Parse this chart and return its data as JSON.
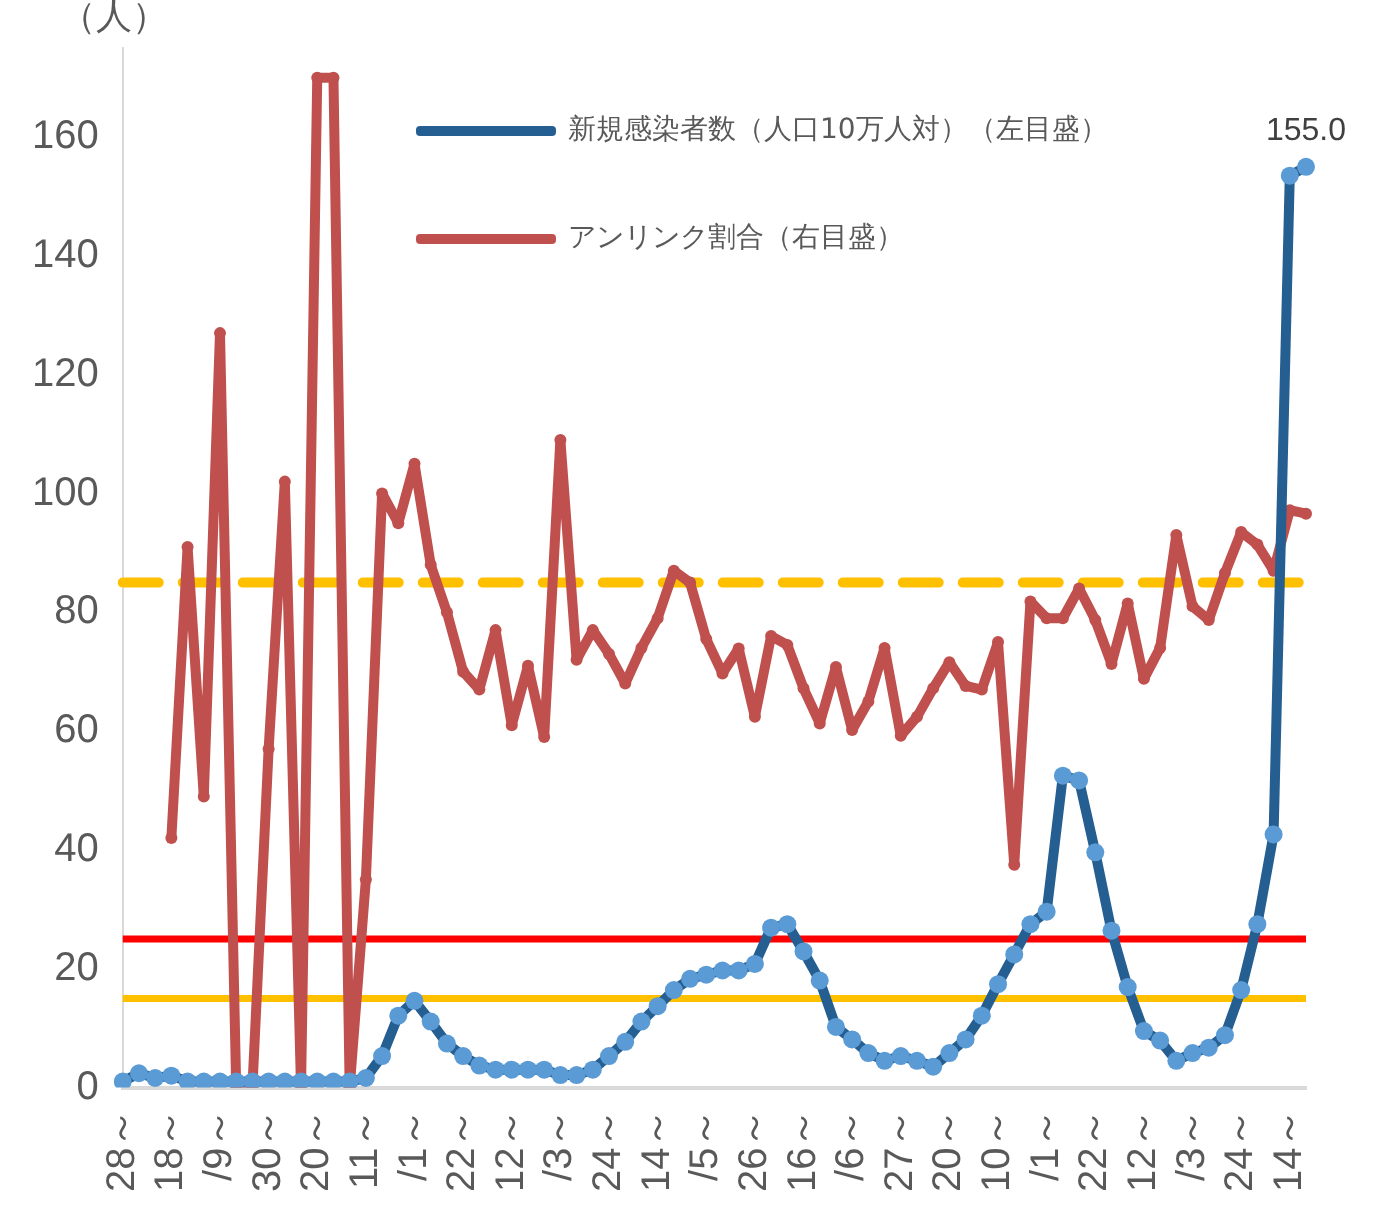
{
  "chart_data": {
    "type": "line",
    "ylabel": "（人）",
    "categories": [
      "28～",
      null,
      null,
      "18～",
      null,
      null,
      "/9～",
      null,
      null,
      "30～",
      null,
      null,
      "20～",
      null,
      null,
      "11～",
      null,
      null,
      "/1～",
      null,
      null,
      "22～",
      null,
      null,
      "12～",
      null,
      null,
      "/3～",
      null,
      null,
      "24～",
      null,
      null,
      "14～",
      null,
      null,
      "/5～",
      null,
      null,
      "26～",
      null,
      null,
      "16～",
      null,
      null,
      "/6～",
      null,
      null,
      "27～",
      null,
      null,
      "20～",
      null,
      null,
      "10～",
      null,
      null,
      "/1～",
      null,
      null,
      "22～",
      null,
      null,
      "12～",
      null,
      null,
      "/3～",
      null,
      null,
      "24～",
      null,
      null,
      "14～",
      null
    ],
    "series": [
      {
        "name": "新規感染者数（人口10万人対）（左目盛）",
        "color": "#255e91",
        "values": [
          1,
          2.4,
          1.6,
          2,
          1,
          1,
          1,
          1,
          1,
          1,
          1,
          1,
          1,
          1,
          1,
          1.6,
          5.3,
          12.1,
          14.6,
          11.1,
          7.4,
          5.3,
          3.7,
          3,
          3,
          3,
          3,
          2.1,
          2.1,
          3,
          5.3,
          7.7,
          11.1,
          13.7,
          16.4,
          18.3,
          19,
          19.7,
          19.7,
          20.8,
          26.9,
          27.5,
          22.9,
          18,
          10.2,
          8.1,
          5.8,
          4.5,
          5.3,
          4.5,
          3.5,
          5.8,
          8.1,
          12.1,
          17.4,
          22.4,
          27.5,
          29.6,
          52.5,
          51.7,
          39.6,
          26.4,
          16.9,
          9.5,
          7.9,
          4.5,
          5.8,
          6.7,
          8.8,
          16.4,
          27.5,
          42.6,
          153.5,
          155
        ],
        "value_labels": [
          null,
          null,
          null,
          null,
          null,
          null,
          null,
          null,
          null,
          null,
          null,
          null,
          null,
          null,
          null,
          null,
          null,
          null,
          null,
          null,
          null,
          null,
          null,
          null,
          null,
          null,
          null,
          null,
          null,
          null,
          null,
          null,
          null,
          null,
          null,
          null,
          null,
          null,
          null,
          null,
          null,
          null,
          null,
          null,
          null,
          null,
          null,
          null,
          null,
          null,
          null,
          null,
          null,
          null,
          null,
          null,
          null,
          null,
          null,
          null,
          null,
          null,
          null,
          null,
          null,
          null,
          null,
          null,
          null,
          null,
          null,
          null,
          null,
          "155.0"
        ]
      },
      {
        "name": "アンリンク割合（右目盛）",
        "color": "#c0504d",
        "values": [
          null,
          null,
          null,
          42,
          91,
          49,
          127,
          0,
          0,
          57,
          102,
          0,
          170,
          170,
          0,
          35,
          100,
          95,
          105,
          88,
          80,
          70,
          67,
          77,
          61,
          71,
          59,
          109,
          72,
          77,
          73,
          68,
          74,
          79,
          87,
          85,
          75.5,
          69.7,
          73.9,
          62.4,
          76,
          74.5,
          67.2,
          61.3,
          70.8,
          60.2,
          65,
          74,
          59.2,
          62.4,
          67.2,
          71.6,
          67.6,
          67,
          75,
          37.5,
          81.8,
          79,
          79,
          84,
          78.7,
          71.3,
          81.5,
          68.8,
          74,
          93,
          81,
          78.7,
          86.6,
          93.5,
          91.4,
          87,
          97.2,
          96.6
        ]
      }
    ],
    "ylim": [
      0,
      175
    ],
    "yticks": [
      0,
      20,
      40,
      60,
      80,
      100,
      120,
      140,
      160
    ],
    "ref_lines": [
      {
        "axis": "y",
        "value": 25,
        "color": "#ff0000",
        "line_style": "solid"
      },
      {
        "axis": "y",
        "value": 15,
        "color": "#ffc000",
        "line_style": "solid"
      },
      {
        "axis": "y",
        "value": 85,
        "color": "#ffc000",
        "line_style": "dashed"
      }
    ],
    "grid": false,
    "legend": "top",
    "marker": "circle",
    "line_style": "solid"
  }
}
